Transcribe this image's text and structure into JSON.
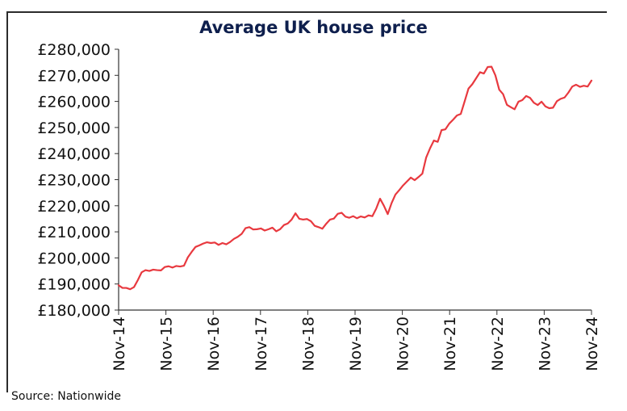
{
  "chart_data": {
    "type": "line",
    "title": "Average UK house price",
    "xlabel": "",
    "ylabel": "",
    "ylim": [
      180000,
      280000
    ],
    "ytick_values": [
      180000,
      190000,
      200000,
      210000,
      220000,
      230000,
      240000,
      250000,
      260000,
      270000,
      280000
    ],
    "ytick_labels": [
      "£180,000",
      "£190,000",
      "£200,000",
      "£210,000",
      "£220,000",
      "£230,000",
      "£240,000",
      "£250,000",
      "£260,000",
      "£270,000",
      "£280,000"
    ],
    "xtick_labels": [
      "Nov-14",
      "Nov-15",
      "Nov-16",
      "Nov-17",
      "Nov-18",
      "Nov-19",
      "Nov-20",
      "Nov-21",
      "Nov-22",
      "Nov-23",
      "Nov-24"
    ],
    "x_start": "Nov-14",
    "x_end": "Nov-24",
    "grid": false,
    "legend": "none",
    "series_color": "#e8393f",
    "series": [
      {
        "values": [
          189500,
          188500,
          188500,
          188000,
          188800,
          191500,
          194500,
          195300,
          195000,
          195500,
          195300,
          195200,
          196500,
          196800,
          196300,
          196900,
          196700,
          197000,
          200200,
          202300,
          204200,
          204800,
          205500,
          206000,
          205700,
          205900,
          205000,
          205700,
          205200,
          206100,
          207300,
          208100,
          209200,
          211400,
          211800,
          210900,
          211000,
          211300,
          210500,
          211000,
          211600,
          210200,
          211000,
          212600,
          213200,
          214700,
          217100,
          215000,
          214700,
          214900,
          214100,
          212300,
          211800,
          211200,
          213100,
          214700,
          215100,
          216900,
          217300,
          215800,
          215400,
          216000,
          215200,
          215900,
          215500,
          216300,
          216000,
          218900,
          222700,
          220000,
          216800,
          221000,
          224300,
          226000,
          227800,
          229300,
          230800,
          229800,
          231000,
          232300,
          238500,
          242000,
          245000,
          244500,
          249000,
          249300,
          251500,
          253000,
          254600,
          255200,
          260000,
          264900,
          266600,
          268900,
          271200,
          270700,
          273200,
          273300,
          270000,
          264500,
          262800,
          258700,
          257800,
          257000,
          259900,
          260500,
          262100,
          261400,
          259500,
          258600,
          259900,
          258100,
          257400,
          257600,
          260100,
          261000,
          261500,
          263400,
          265700,
          266400,
          265600,
          266000,
          265700,
          268000
        ]
      }
    ]
  },
  "source": "Source: Nationwide"
}
